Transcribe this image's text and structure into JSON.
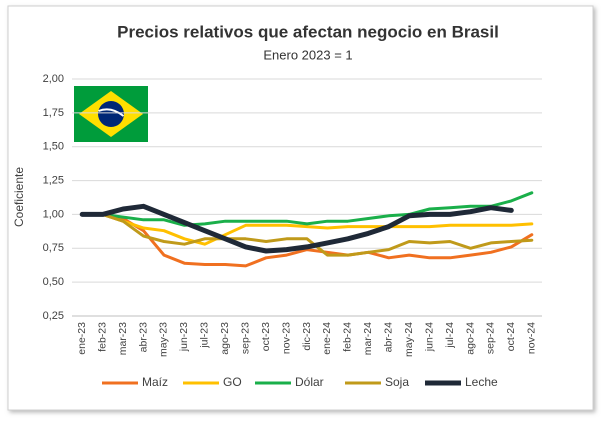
{
  "chart_data": {
    "type": "line",
    "title": "Precios relativos que afectan negocio en Brasil",
    "subtitle": "Enero 2023 = 1",
    "y_label": "Coeficiente",
    "categories": [
      "ene-23",
      "feb-23",
      "mar-23",
      "abr-23",
      "may-23",
      "jun-23",
      "jul-23",
      "ago-23",
      "sep-23",
      "oct-23",
      "nov-23",
      "dic-23",
      "ene-24",
      "feb-24",
      "mar-24",
      "abr-24",
      "may-24",
      "jun-24",
      "jul-24",
      "ago-24",
      "sep-24",
      "oct-24",
      "nov-24"
    ],
    "series": [
      {
        "name": "Maíz",
        "color": "#f07020",
        "values": [
          1.0,
          1.0,
          0.97,
          0.88,
          0.7,
          0.64,
          0.63,
          0.63,
          0.62,
          0.68,
          0.7,
          0.74,
          0.72,
          0.7,
          0.72,
          0.68,
          0.7,
          0.68,
          0.68,
          0.7,
          0.72,
          0.76,
          0.85
        ]
      },
      {
        "name": "GO",
        "color": "#ffc000",
        "values": [
          1.0,
          1.0,
          0.95,
          0.9,
          0.88,
          0.82,
          0.78,
          0.85,
          0.92,
          0.92,
          0.92,
          0.91,
          0.9,
          0.91,
          0.91,
          0.91,
          0.91,
          0.91,
          0.92,
          0.92,
          0.92,
          0.92,
          0.93
        ]
      },
      {
        "name": "Dólar",
        "color": "#1aaf4a",
        "values": [
          1.0,
          1.0,
          0.98,
          0.96,
          0.96,
          0.92,
          0.93,
          0.95,
          0.95,
          0.95,
          0.95,
          0.93,
          0.95,
          0.95,
          0.97,
          0.99,
          1.0,
          1.04,
          1.05,
          1.06,
          1.06,
          1.1,
          1.16
        ]
      },
      {
        "name": "Soja",
        "color": "#c09a1a",
        "values": [
          1.0,
          1.0,
          0.95,
          0.84,
          0.8,
          0.78,
          0.82,
          0.82,
          0.82,
          0.8,
          0.82,
          0.82,
          0.7,
          0.7,
          0.72,
          0.74,
          0.8,
          0.79,
          0.8,
          0.75,
          0.79,
          0.8,
          0.81
        ]
      },
      {
        "name": "Leche",
        "color": "#1f2937",
        "values": [
          1.0,
          1.0,
          1.04,
          1.06,
          1.0,
          0.94,
          0.88,
          0.82,
          0.76,
          0.73,
          0.74,
          0.76,
          0.79,
          0.82,
          0.86,
          0.91,
          0.99,
          1.0,
          1.0,
          1.02,
          1.05,
          1.03,
          null
        ]
      }
    ],
    "ylim": [
      0.25,
      2.0
    ],
    "yticks": [
      {
        "value": 0.25,
        "label": "0,25"
      },
      {
        "value": 0.5,
        "label": "0,50"
      },
      {
        "value": 0.75,
        "label": "0,75"
      },
      {
        "value": 1.0,
        "label": "1,00"
      },
      {
        "value": 1.25,
        "label": "1,25"
      },
      {
        "value": 1.5,
        "label": "1,50"
      },
      {
        "value": 1.75,
        "label": "1,75"
      },
      {
        "value": 2.0,
        "label": "2,00"
      }
    ],
    "grid": true,
    "legend": "bottom"
  }
}
